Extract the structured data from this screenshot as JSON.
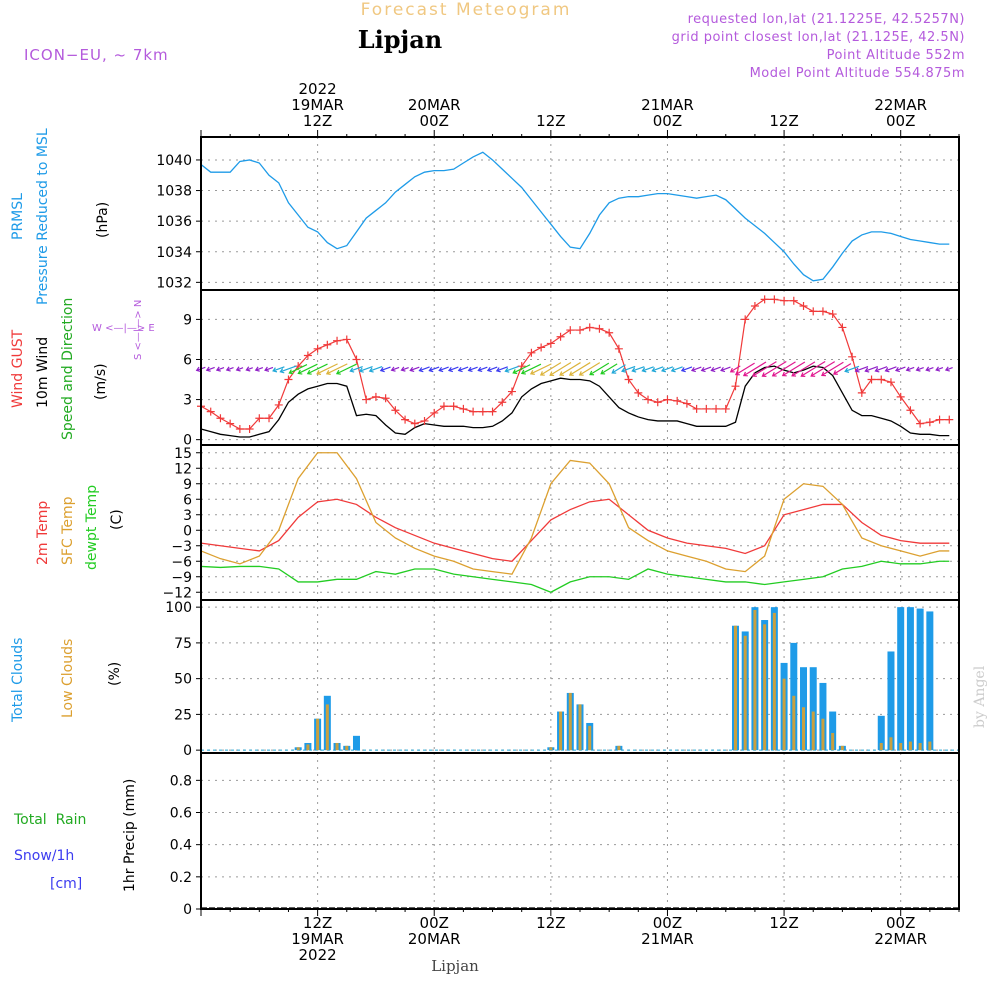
{
  "header": {
    "title": "Forecast Meteogram",
    "location": "Lipjan",
    "model": "ICON−EU, ~ 7km",
    "requested": "requested lon,lat (21.1225E, 42.5257N)",
    "grid_point": "grid point closest lon,lat (21.125E, 42.5N)",
    "point_altitude": "Point Altitude 552m",
    "model_altitude": "Model Point Altitude 554.875m"
  },
  "footer": {
    "location": "Lipjan",
    "watermark": "by Angel"
  },
  "time_axis": {
    "start_hour": 0,
    "end_hour": 78,
    "top_labels": [
      {
        "hour": 12,
        "lines": [
          "2022",
          "19MAR",
          "12Z"
        ]
      },
      {
        "hour": 24,
        "lines": [
          "20MAR",
          "00Z"
        ]
      },
      {
        "hour": 36,
        "lines": [
          "12Z"
        ]
      },
      {
        "hour": 48,
        "lines": [
          "21MAR",
          "00Z"
        ]
      },
      {
        "hour": 60,
        "lines": [
          "12Z"
        ]
      },
      {
        "hour": 72,
        "lines": [
          "22MAR",
          "00Z"
        ]
      }
    ],
    "bottom_labels": [
      {
        "hour": 12,
        "lines": [
          "12Z",
          "19MAR",
          "2022"
        ]
      },
      {
        "hour": 24,
        "lines": [
          "00Z",
          "20MAR"
        ]
      },
      {
        "hour": 36,
        "lines": [
          "12Z"
        ]
      },
      {
        "hour": 48,
        "lines": [
          "00Z",
          "21MAR"
        ]
      },
      {
        "hour": 60,
        "lines": [
          "12Z"
        ]
      },
      {
        "hour": 72,
        "lines": [
          "00Z",
          "22MAR"
        ]
      }
    ]
  },
  "colors": {
    "pressure": "#1e9be8",
    "gust": "#f03a3a",
    "wind": "#000000",
    "wind_dir": "#22aa22",
    "temp": "#f03a3a",
    "sfc_temp": "#dca030",
    "dewpt": "#22cc22",
    "total_clouds": "#1e9be8",
    "low_clouds": "#c8a040",
    "rain": "#22aa22",
    "snow": "#3c3cf0",
    "header_orange": "#f0c882",
    "header_purple": "#b45adc"
  },
  "panels": {
    "pressure": {
      "labels": [
        "PRMSL",
        "Pressure Reduced to MSL"
      ],
      "unit": "(hPa)"
    },
    "wind": {
      "labels": [
        "Wind GUST",
        "10m Wind",
        "Speed and Direction"
      ],
      "unit": "(m/s)",
      "compass": "W <—|—> E",
      "compass_ns": "S <—|—> N"
    },
    "temperature": {
      "labels": [
        "2m Temp",
        "SFC Temp",
        "dewpt Temp"
      ],
      "unit": "(C)"
    },
    "clouds": {
      "labels": [
        "Total Clouds",
        "Low Clouds"
      ],
      "unit": "(%)"
    },
    "precip": {
      "labels": [
        "Total  Rain",
        "Snow/1h",
        "[cm]"
      ],
      "unit": "1hr Precip (mm)"
    }
  },
  "chart_data": [
    {
      "type": "line",
      "title": "PRMSL Pressure Reduced to MSL",
      "ylabel": "(hPa)",
      "ylim": [
        1031.5,
        1041.5
      ],
      "yticks": [
        1032,
        1034,
        1036,
        1038,
        1040
      ],
      "x_hours": [
        0,
        1,
        2,
        3,
        4,
        5,
        6,
        7,
        8,
        9,
        10,
        11,
        12,
        13,
        14,
        15,
        16,
        17,
        18,
        19,
        20,
        21,
        22,
        23,
        24,
        25,
        26,
        27,
        28,
        29,
        30,
        31,
        32,
        33,
        34,
        35,
        36,
        37,
        38,
        39,
        40,
        41,
        42,
        43,
        44,
        45,
        46,
        47,
        48,
        49,
        50,
        51,
        52,
        53,
        54,
        55,
        56,
        57,
        58,
        59,
        60,
        61,
        62,
        63,
        64,
        65,
        66,
        67,
        68,
        69,
        70,
        71,
        72,
        73,
        74,
        75,
        76,
        77
      ],
      "series": [
        {
          "values": [
            1039.7,
            1039.2,
            1039.2,
            1039.2,
            1039.9,
            1040.0,
            1039.8,
            1039.0,
            1038.5,
            1037.2,
            1036.4,
            1035.6,
            1035.3,
            1034.6,
            1034.2,
            1034.4,
            1035.3,
            1036.2,
            1036.7,
            1037.2,
            1037.9,
            1038.4,
            1038.9,
            1039.2,
            1039.3,
            1039.3,
            1039.4,
            1039.8,
            1040.2,
            1040.5,
            1040.0,
            1039.4,
            1038.8,
            1038.2,
            1037.4,
            1036.6,
            1035.8,
            1035.0,
            1034.3,
            1034.2,
            1035.2,
            1036.4,
            1037.2,
            1037.5,
            1037.6,
            1037.6,
            1037.7,
            1037.8,
            1037.8,
            1037.7,
            1037.6,
            1037.5,
            1037.6,
            1037.7,
            1037.4,
            1036.8,
            1036.2,
            1035.7,
            1035.2,
            1034.6,
            1034.0,
            1033.2,
            1032.5,
            1032.1,
            1032.2,
            1033.0,
            1033.9,
            1034.7,
            1035.1,
            1035.3,
            1035.3,
            1035.2,
            1035.0,
            1034.8,
            1034.7,
            1034.6,
            1034.5,
            1034.5
          ]
        }
      ]
    },
    {
      "type": "line",
      "title": "Wind GUST / 10m Wind Speed and Direction",
      "ylabel": "(m/s)",
      "ylim": [
        -0.4,
        11.2
      ],
      "yticks": [
        0,
        3,
        6,
        9
      ],
      "x_hours": [
        0,
        1,
        2,
        3,
        4,
        5,
        6,
        7,
        8,
        9,
        10,
        11,
        12,
        13,
        14,
        15,
        16,
        17,
        18,
        19,
        20,
        21,
        22,
        23,
        24,
        25,
        26,
        27,
        28,
        29,
        30,
        31,
        32,
        33,
        34,
        35,
        36,
        37,
        38,
        39,
        40,
        41,
        42,
        43,
        44,
        45,
        46,
        47,
        48,
        49,
        50,
        51,
        52,
        53,
        54,
        55,
        56,
        57,
        58,
        59,
        60,
        61,
        62,
        63,
        64,
        65,
        66,
        67,
        68,
        69,
        70,
        71,
        72,
        73,
        74,
        75,
        76,
        77
      ],
      "series": [
        {
          "name": "Wind GUST",
          "values": [
            2.5,
            2.1,
            1.6,
            1.2,
            0.8,
            0.8,
            1.6,
            1.6,
            2.6,
            4.5,
            5.5,
            6.3,
            6.8,
            7.1,
            7.4,
            7.5,
            6.0,
            3.0,
            3.2,
            3.1,
            2.2,
            1.5,
            1.2,
            1.4,
            2.0,
            2.5,
            2.5,
            2.3,
            2.1,
            2.1,
            2.1,
            2.8,
            3.6,
            5.5,
            6.5,
            6.9,
            7.2,
            7.7,
            8.2,
            8.2,
            8.4,
            8.3,
            8.0,
            6.8,
            4.5,
            3.5,
            3.0,
            2.8,
            3.0,
            2.9,
            2.7,
            2.3,
            2.3,
            2.3,
            2.3,
            4.0,
            9.0,
            10.0,
            10.5,
            10.5,
            10.4,
            10.4,
            10.0,
            9.6,
            9.6,
            9.4,
            8.4,
            6.2,
            3.5,
            4.5,
            4.5,
            4.3,
            3.2,
            2.2,
            1.2,
            1.3,
            1.5,
            1.5
          ]
        },
        {
          "name": "10m Wind",
          "values": [
            0.8,
            0.6,
            0.4,
            0.3,
            0.2,
            0.2,
            0.4,
            0.6,
            1.5,
            2.8,
            3.4,
            3.8,
            4.0,
            4.2,
            4.2,
            4.0,
            1.8,
            1.9,
            1.8,
            1.1,
            0.5,
            0.4,
            0.9,
            1.2,
            1.1,
            1.0,
            1.0,
            1.0,
            0.9,
            0.9,
            1.0,
            1.4,
            2.0,
            3.2,
            3.8,
            4.2,
            4.4,
            4.6,
            4.5,
            4.5,
            4.4,
            4.0,
            3.2,
            2.4,
            2.0,
            1.7,
            1.5,
            1.4,
            1.4,
            1.4,
            1.2,
            1.0,
            1.0,
            1.0,
            1.0,
            1.3,
            4.0,
            5.0,
            5.4,
            5.5,
            5.2,
            5.0,
            5.2,
            5.5,
            5.4,
            4.8,
            3.5,
            2.2,
            1.8,
            1.8,
            1.6,
            1.4,
            1.0,
            0.5,
            0.4,
            0.4,
            0.3,
            0.3
          ]
        }
      ]
    },
    {
      "type": "line",
      "title": "2m Temp / SFC Temp / dewpt Temp",
      "ylabel": "(C)",
      "ylim": [
        -13.5,
        16.5
      ],
      "yticks": [
        -12,
        -9,
        -6,
        -3,
        0,
        3,
        6,
        9,
        12,
        15
      ],
      "x_hours": [
        0,
        2,
        4,
        6,
        8,
        10,
        12,
        14,
        16,
        18,
        20,
        22,
        24,
        26,
        28,
        30,
        32,
        34,
        36,
        38,
        40,
        42,
        44,
        46,
        48,
        50,
        52,
        54,
        56,
        58,
        60,
        62,
        64,
        66,
        68,
        70,
        72,
        74,
        76,
        77
      ],
      "series": [
        {
          "name": "2m Temp",
          "values": [
            -2.5,
            -3.0,
            -3.5,
            -4.0,
            -2.0,
            2.5,
            5.5,
            6.0,
            5.0,
            2.5,
            0.5,
            -1.0,
            -2.5,
            -3.5,
            -4.5,
            -5.5,
            -6.0,
            -2.0,
            2.0,
            4.0,
            5.5,
            6.0,
            3.0,
            0.0,
            -1.5,
            -2.5,
            -3.0,
            -3.5,
            -4.5,
            -3.0,
            3.0,
            4.0,
            5.0,
            5.0,
            1.5,
            -1.0,
            -2.0,
            -2.5,
            -2.5,
            -2.5
          ]
        },
        {
          "name": "SFC Temp",
          "values": [
            -4.0,
            -5.5,
            -6.5,
            -5.0,
            0.0,
            10.0,
            15.0,
            15.0,
            10.0,
            1.5,
            -1.5,
            -3.5,
            -5.0,
            -6.0,
            -7.5,
            -8.0,
            -8.5,
            -1.5,
            9.0,
            13.5,
            13.0,
            9.0,
            0.5,
            -2.0,
            -4.0,
            -5.0,
            -6.0,
            -7.5,
            -8.0,
            -5.0,
            6.0,
            9.0,
            8.5,
            5.0,
            -1.5,
            -3.0,
            -4.0,
            -5.0,
            -4.0,
            -4.0
          ]
        },
        {
          "name": "dewpt Temp",
          "values": [
            -7.0,
            -7.2,
            -7.0,
            -7.0,
            -7.5,
            -10.0,
            -10.0,
            -9.5,
            -9.5,
            -8.0,
            -8.5,
            -7.5,
            -7.5,
            -8.5,
            -9.0,
            -9.5,
            -10.0,
            -10.5,
            -12.0,
            -10.0,
            -9.0,
            -9.0,
            -9.5,
            -7.5,
            -8.5,
            -9.0,
            -9.5,
            -10.0,
            -10.0,
            -10.5,
            -10.0,
            -9.5,
            -9.0,
            -7.5,
            -7.0,
            -6.0,
            -6.5,
            -6.5,
            -6.0,
            -6.0
          ]
        }
      ]
    },
    {
      "type": "bar",
      "title": "Total Clouds / Low Clouds",
      "ylabel": "(%)",
      "ylim": [
        -2,
        105
      ],
      "yticks": [
        0,
        25,
        50,
        75,
        100
      ],
      "bar_hours": [
        10,
        11,
        12,
        13,
        14,
        15,
        16,
        17,
        36,
        37,
        38,
        39,
        40,
        43,
        55,
        56,
        57,
        58,
        59,
        60,
        61,
        62,
        63,
        64,
        65,
        66,
        70,
        71,
        72,
        73,
        74,
        75,
        76
      ],
      "series": [
        {
          "name": "Total Clouds",
          "values": [
            2,
            5,
            22,
            38,
            5,
            3,
            10,
            0,
            2,
            27,
            40,
            32,
            19,
            3,
            87,
            83,
            100,
            91,
            100,
            61,
            75,
            58,
            58,
            47,
            27,
            3,
            24,
            69,
            100,
            100,
            99,
            97,
            0
          ]
        },
        {
          "name": "Low Clouds",
          "values": [
            2,
            4,
            22,
            32,
            5,
            3,
            0,
            0,
            2,
            27,
            40,
            32,
            17,
            3,
            87,
            80,
            98,
            88,
            96,
            50,
            38,
            30,
            27,
            22,
            12,
            3,
            5,
            9,
            5,
            6,
            5,
            6,
            0
          ]
        }
      ]
    },
    {
      "type": "line",
      "title": "1hr Precip",
      "ylabel": "1hr Precip (mm)",
      "ylim": [
        0,
        0.97
      ],
      "yticks": [
        0,
        0.2,
        0.4,
        0.6,
        0.8
      ],
      "series": [
        {
          "name": "Total Rain",
          "values": [
            0
          ]
        },
        {
          "name": "Snow/1h",
          "values": [
            0
          ]
        }
      ]
    }
  ]
}
